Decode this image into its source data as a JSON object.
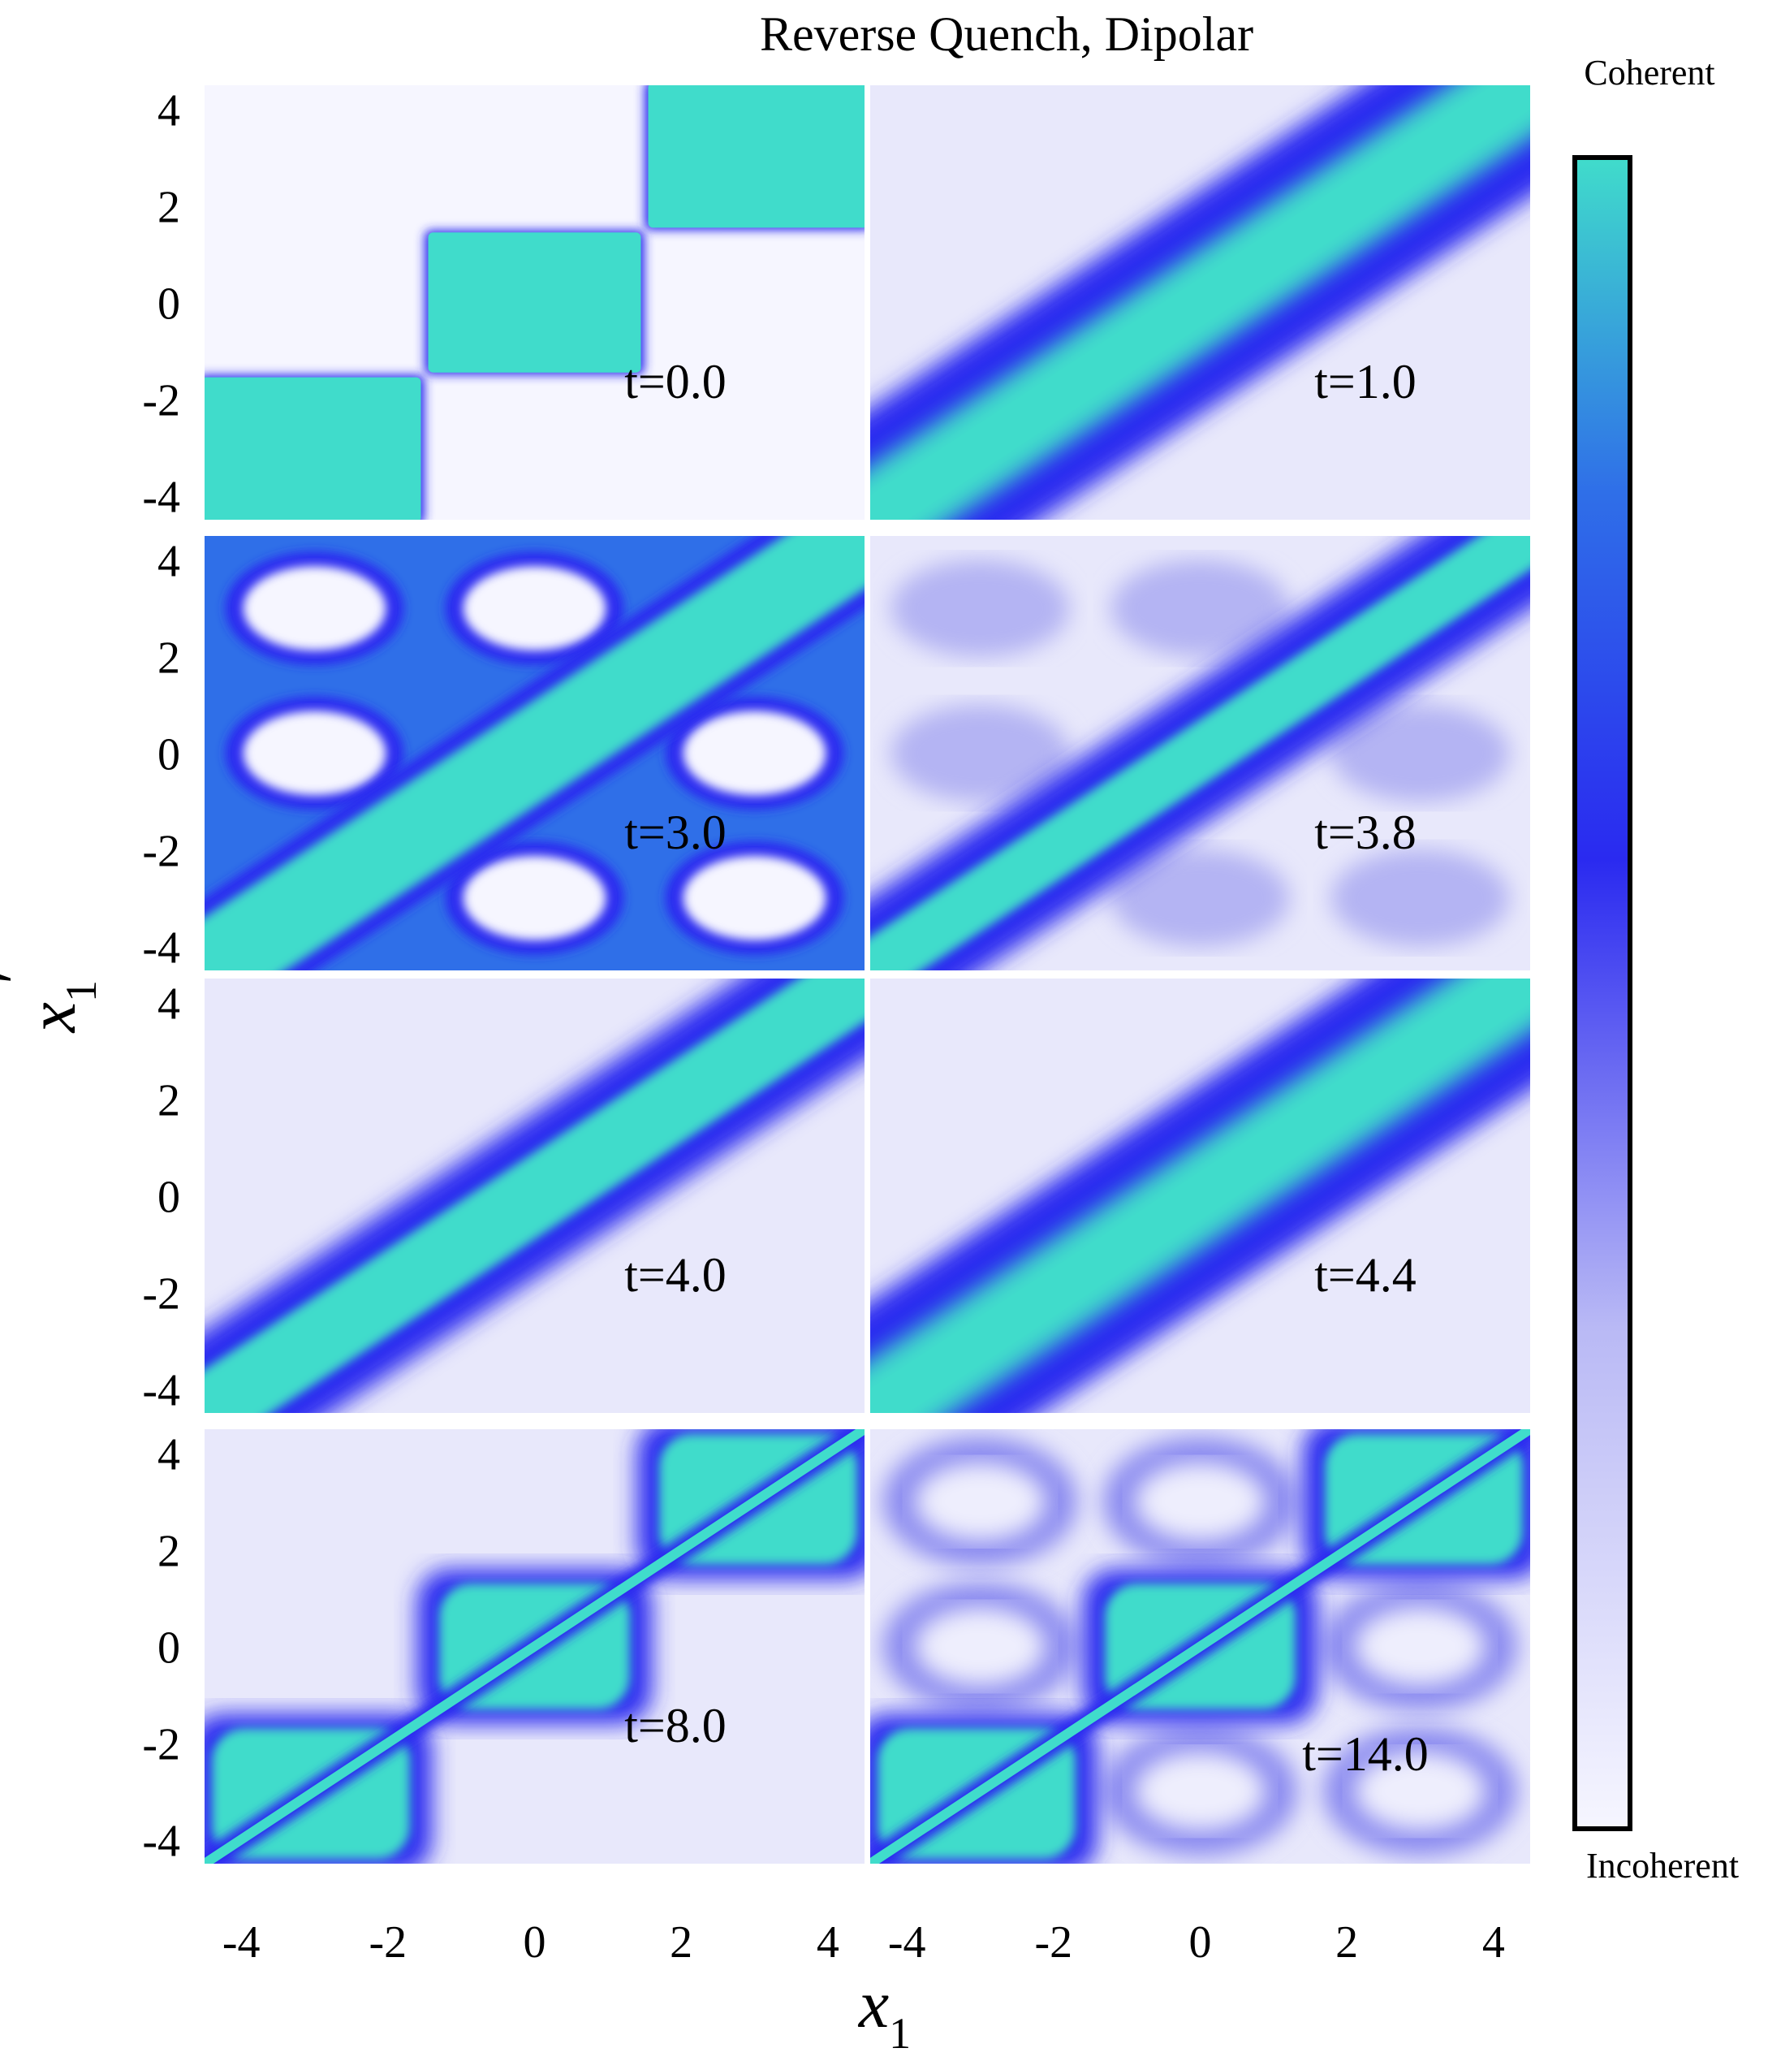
{
  "chart_data": {
    "type": "heatmap",
    "title": "Reverse Quench, Dipolar",
    "xlabel": "x",
    "xlabel_sub": "1",
    "ylabel": "x",
    "ylabel_sub": "1",
    "ylabel_prime": "′",
    "xlim": [
      -4.5,
      4.5
    ],
    "ylim": [
      -4.5,
      4.5
    ],
    "xticks": [
      "-4",
      "-2",
      "0",
      "2",
      "4"
    ],
    "yticks": [
      "-4",
      "-2",
      "0",
      "2",
      "4"
    ],
    "colorbar": {
      "top_label": "Coherent",
      "bottom_label": "Incoherent",
      "colors": [
        "#f6f6ff",
        "#b9b9f5",
        "#2a2af0",
        "#2f6fe8",
        "#40dccb"
      ]
    },
    "panels": [
      {
        "label": "t=0.0",
        "time": 0.0,
        "pattern": "blocks"
      },
      {
        "label": "t=1.0",
        "time": 1.0,
        "pattern": "diagonal-wide"
      },
      {
        "label": "t=3.0",
        "time": 3.0,
        "pattern": "lattice"
      },
      {
        "label": "t=3.8",
        "time": 3.8,
        "pattern": "diagonal-checker"
      },
      {
        "label": "t=4.0",
        "time": 4.0,
        "pattern": "diagonal-knots"
      },
      {
        "label": "t=4.4",
        "time": 4.4,
        "pattern": "diagonal-wide"
      },
      {
        "label": "t=8.0",
        "time": 8.0,
        "pattern": "blocks-soft"
      },
      {
        "label": "t=14.0",
        "time": 14.0,
        "pattern": "blocks-soft-ring"
      }
    ]
  }
}
